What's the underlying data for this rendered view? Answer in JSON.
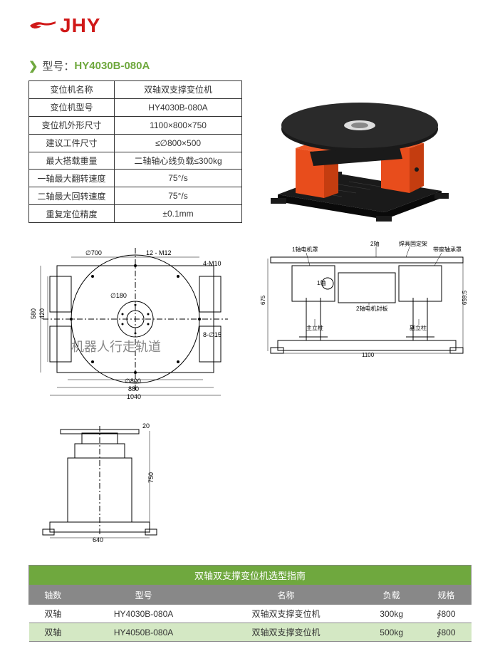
{
  "logo_text": "JHY",
  "model": {
    "label": "型号：",
    "code": "HY4030B-080A"
  },
  "spec_rows": [
    [
      "变位机名称",
      "双轴双支撑变位机"
    ],
    [
      "变位机型号",
      "HY4030B-080A"
    ],
    [
      "变位机外形尺寸",
      "1100×800×750"
    ],
    [
      "建议工件尺寸",
      "≤∅800×500"
    ],
    [
      "最大搭载重量",
      "二轴轴心线负载≤300kg"
    ],
    [
      "一轴最大翻转速度",
      "75°/s"
    ],
    [
      "二轴最大回转速度",
      "75°/s"
    ],
    [
      "重复定位精度",
      "±0.1mm"
    ]
  ],
  "watermark": "机器人行走轨道",
  "top_drawing": {
    "d700": "∅700",
    "d180": "∅180",
    "d800": "∅800",
    "holes12": "12 - M12",
    "holes4": "4-M10",
    "holes8": "8-∅15",
    "w880": "880",
    "w1040": "1040",
    "h580": "580",
    "h420": "420"
  },
  "front_drawing": {
    "w640": "640",
    "h750": "750",
    "h20": "20"
  },
  "side_drawing": {
    "w1100": "1100",
    "h675": "675",
    "h659": "659.5",
    "axis1": "1轴",
    "axis2": "2轴",
    "label_motor1": "1轴电机罩",
    "label_bearing": "带座轴承罩",
    "label_fixture": "焊具固定架",
    "label_motor2": "2轴电机封板",
    "label_main": "主立柱",
    "label_sub": "副立柱"
  },
  "guide": {
    "title": "双轴双支撑变位机选型指南",
    "headers": [
      "轴数",
      "型号",
      "名称",
      "负载",
      "规格"
    ],
    "rows": [
      [
        "双轴",
        "HY4030B-080A",
        "双轴双支撑变位机",
        "300kg",
        "∮800"
      ],
      [
        "双轴",
        "HY4050B-080A",
        "双轴双支撑变位机",
        "500kg",
        "∮800"
      ]
    ]
  },
  "colors": {
    "brand_red": "#d01818",
    "machine_orange": "#e84d1c",
    "machine_black": "#1a1a1a",
    "guide_green": "#6fa83e",
    "guide_gray": "#888888"
  }
}
